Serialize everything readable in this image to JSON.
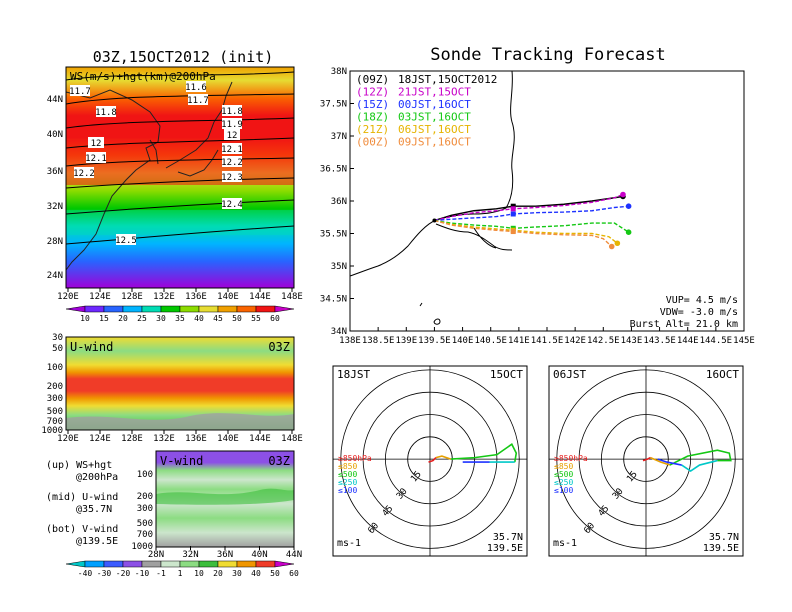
{
  "colors": {
    "ws_scale": [
      "#a000d8",
      "#6e28ff",
      "#2864ff",
      "#00b4ff",
      "#00dcb4",
      "#00c800",
      "#8cdc00",
      "#e6dc32",
      "#f0a000",
      "#fa6400",
      "#f01414",
      "#c800c8"
    ],
    "uwind_scale": [
      "#00c8c8",
      "#00a0ff",
      "#3c5cff",
      "#8c50e6",
      "#a0a0a0",
      "#cce6cc",
      "#8cdc82",
      "#3cbe3c",
      "#f0dc32",
      "#f09600",
      "#f03c28",
      "#c800c8"
    ],
    "track_series": [
      "#000000",
      "#c800c8",
      "#1e32ff",
      "#14c814",
      "#e6b400",
      "#f08c3c"
    ],
    "hodo_series": [
      "#e61e1e",
      "#e6a000",
      "#14c814",
      "#00c8c8",
      "#1e32ff"
    ]
  },
  "map_panel": {
    "title": "03Z,15OCT2012 (init)",
    "subtitle": "WS(m/s)+hgt(km)@200hPa",
    "x_ticks": [
      "120E",
      "124E",
      "128E",
      "132E",
      "136E",
      "140E",
      "144E",
      "148E"
    ],
    "y_ticks": [
      "24N",
      "28N",
      "32N",
      "36N",
      "40N",
      "44N"
    ],
    "contour_labels": [
      "11.7",
      "11.6",
      "11.7",
      "11.8",
      "11.8",
      "11.9",
      "12",
      "12",
      "12.1",
      "12.1",
      "12.2",
      "12.2",
      "12.3",
      "12.4",
      "12.5"
    ],
    "colorbar": [
      "10",
      "15",
      "20",
      "25",
      "30",
      "35",
      "40",
      "45",
      "50",
      "55",
      "60"
    ]
  },
  "uwind_panel": {
    "title": "U-wind",
    "time": "03Z",
    "x_ticks": [
      "120E",
      "124E",
      "128E",
      "132E",
      "136E",
      "140E",
      "144E",
      "148E"
    ],
    "y_ticks": [
      "30",
      "50",
      "100",
      "200",
      "300",
      "500",
      "700",
      "1000"
    ]
  },
  "vwind_panel": {
    "title": "V-wind",
    "time": "03Z",
    "x_ticks": [
      "28N",
      "32N",
      "36N",
      "40N",
      "44N"
    ],
    "y_ticks": [
      "100",
      "200",
      "300",
      "500",
      "700",
      "1000"
    ],
    "colorbar": [
      "-40",
      "-30",
      "-20",
      "-10",
      "-1",
      "1",
      "10",
      "20",
      "30",
      "40",
      "50",
      "60"
    ]
  },
  "legend_notes": {
    "up1": "(up) WS+hgt",
    "up2": "@200hPa",
    "mid1": "(mid) U-wind",
    "mid2": "@35.7N",
    "bot1": "(bot) V-wind",
    "bot2": "@139.5E"
  },
  "track_panel": {
    "title": "Sonde Tracking Forecast",
    "x_ticks": [
      "138E",
      "138.5E",
      "139E",
      "139.5E",
      "140E",
      "140.5E",
      "141E",
      "141.5E",
      "142E",
      "142.5E",
      "143E",
      "143.5E",
      "144E",
      "144.5E",
      "145E"
    ],
    "y_ticks": [
      "34N",
      "34.5N",
      "35N",
      "35.5N",
      "36N",
      "36.5N",
      "37N",
      "37.5N",
      "38N"
    ],
    "launches": [
      {
        "utc": "(09Z)",
        "jst": "18JST,15OCT2012"
      },
      {
        "utc": "(12Z)",
        "jst": "21JST,15OCT"
      },
      {
        "utc": "(15Z)",
        "jst": "00JST,16OCT"
      },
      {
        "utc": "(18Z)",
        "jst": "03JST,16OCT"
      },
      {
        "utc": "(21Z)",
        "jst": "06JST,16OCT"
      },
      {
        "utc": "(00Z)",
        "jst": "09JST,16OCT"
      }
    ],
    "params": {
      "vup": "VUP=  4.5 m/s",
      "vdw": "VDW= -3.0 m/s",
      "burst": "Burst Alt= 21.0 km"
    }
  },
  "hodographs": [
    {
      "time": "18JST",
      "date": "15OCT",
      "lat": "35.7N",
      "lon": "139.5E",
      "unit": "ms-1"
    },
    {
      "time": "06JST",
      "date": "16OCT",
      "lat": "35.7N",
      "lon": "139.5E",
      "unit": "ms-1"
    }
  ],
  "hodo_legend": [
    "≥850hPa",
    "≤850",
    "≤500",
    "≤250",
    "≤100"
  ],
  "hodo_rings": [
    "15",
    "30",
    "45",
    "60"
  ],
  "chart_data": {
    "type": "line",
    "title": "Sonde Tracking Forecast",
    "xlim": [
      138,
      145
    ],
    "ylim": [
      34,
      38
    ],
    "launch_point": {
      "lon": 139.5,
      "lat": 35.7
    },
    "series": [
      {
        "name": "(09Z) 18JST,15OCT2012",
        "x": [
          139.5,
          139.8,
          140.2,
          140.6,
          140.9,
          141.3,
          141.8,
          142.3,
          142.7,
          142.85
        ],
        "y": [
          35.7,
          35.78,
          35.85,
          35.88,
          35.92,
          35.92,
          35.95,
          36.0,
          36.05,
          36.07
        ]
      },
      {
        "name": "(12Z) 21JST,15OCT",
        "x": [
          139.5,
          139.8,
          140.2,
          140.6,
          140.9,
          141.3,
          141.8,
          142.3,
          142.7,
          142.85
        ],
        "y": [
          35.7,
          35.76,
          35.82,
          35.85,
          35.88,
          35.9,
          35.93,
          35.98,
          36.05,
          36.1
        ]
      },
      {
        "name": "(15Z) 00JST,16OCT",
        "x": [
          139.5,
          139.8,
          140.2,
          140.6,
          140.9,
          141.3,
          141.8,
          142.3,
          142.7,
          142.95
        ],
        "y": [
          35.7,
          35.72,
          35.74,
          35.76,
          35.8,
          35.82,
          35.83,
          35.85,
          35.9,
          35.92
        ]
      },
      {
        "name": "(18Z) 03JST,16OCT",
        "x": [
          139.5,
          139.8,
          140.2,
          140.6,
          140.9,
          141.3,
          141.8,
          142.3,
          142.7,
          142.95
        ],
        "y": [
          35.7,
          35.66,
          35.63,
          35.61,
          35.58,
          35.6,
          35.62,
          35.66,
          35.66,
          35.52
        ]
      },
      {
        "name": "(21Z) 06JST,16OCT",
        "x": [
          139.5,
          139.8,
          140.2,
          140.6,
          140.9,
          141.3,
          141.8,
          142.3,
          142.6,
          142.75
        ],
        "y": [
          35.7,
          35.64,
          35.6,
          35.57,
          35.55,
          35.52,
          35.5,
          35.5,
          35.45,
          35.35
        ]
      },
      {
        "name": "(00Z) 09JST,16OCT",
        "x": [
          139.5,
          139.8,
          140.2,
          140.6,
          140.9,
          141.3,
          141.8,
          142.3,
          142.5,
          142.65
        ],
        "y": [
          35.7,
          35.63,
          35.58,
          35.55,
          35.53,
          35.5,
          35.48,
          35.47,
          35.42,
          35.3
        ]
      }
    ]
  }
}
